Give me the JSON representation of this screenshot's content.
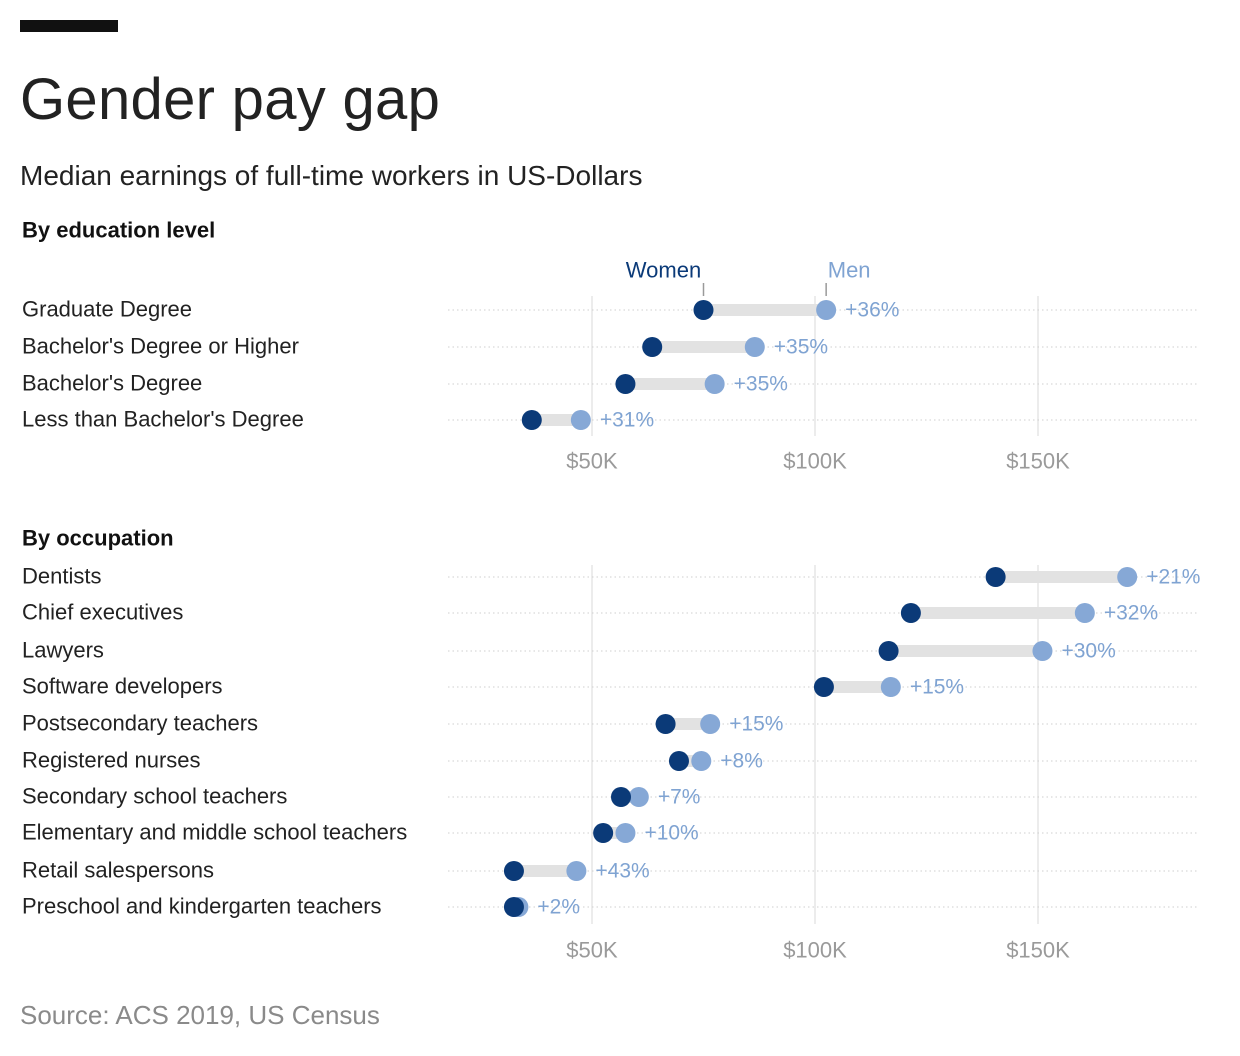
{
  "header": {
    "title": "Gender pay gap",
    "subtitle": "Median earnings of full-time workers in US-Dollars"
  },
  "footer": {
    "source": "Source: ACS 2019, US Census"
  },
  "colors": {
    "women": "#0b3a78",
    "men": "#86a8d6",
    "connector": "#e2e2e2",
    "grid": "#e6e6e6"
  },
  "chart_data": [
    {
      "type": "dumbbell",
      "title": "By education level",
      "legend": {
        "women": "Women",
        "men": "Men"
      },
      "x_ticks": [
        {
          "value": 50000,
          "label": "$50K"
        },
        {
          "value": 100000,
          "label": "$100K"
        },
        {
          "value": 150000,
          "label": "$150K"
        }
      ],
      "xlim": [
        18000,
        188000
      ],
      "rows": [
        {
          "label": "Graduate Degree",
          "women": 75000,
          "men": 102500,
          "gap": "+36%"
        },
        {
          "label": "Bachelor's Degree or Higher",
          "women": 63500,
          "men": 86500,
          "gap": "+35%"
        },
        {
          "label": "Bachelor's Degree",
          "women": 57500,
          "men": 77500,
          "gap": "+35%"
        },
        {
          "label": "Less than Bachelor's Degree",
          "women": 36500,
          "men": 47500,
          "gap": "+31%"
        }
      ]
    },
    {
      "type": "dumbbell",
      "title": "By occupation",
      "x_ticks": [
        {
          "value": 50000,
          "label": "$50K"
        },
        {
          "value": 100000,
          "label": "$100K"
        },
        {
          "value": 150000,
          "label": "$150K"
        }
      ],
      "xlim": [
        18000,
        188000
      ],
      "rows": [
        {
          "label": "Dentists",
          "women": 140500,
          "men": 170000,
          "gap": "+21%"
        },
        {
          "label": "Chief executives",
          "women": 121500,
          "men": 160500,
          "gap": "+32%"
        },
        {
          "label": "Lawyers",
          "women": 116500,
          "men": 151000,
          "gap": "+30%"
        },
        {
          "label": "Software developers",
          "women": 102000,
          "men": 117000,
          "gap": "+15%"
        },
        {
          "label": "Postsecondary teachers",
          "women": 66500,
          "men": 76500,
          "gap": "+15%"
        },
        {
          "label": "Registered nurses",
          "women": 69500,
          "men": 74500,
          "gap": "+8%"
        },
        {
          "label": "Secondary school teachers",
          "women": 56500,
          "men": 60500,
          "gap": "+7%"
        },
        {
          "label": "Elementary and middle school teachers",
          "women": 52500,
          "men": 57500,
          "gap": "+10%"
        },
        {
          "label": "Retail salespersons",
          "women": 32500,
          "men": 46500,
          "gap": "+43%"
        },
        {
          "label": "Preschool and kindergarten teachers",
          "women": 32500,
          "men": 33500,
          "gap": "+2%"
        }
      ]
    }
  ]
}
